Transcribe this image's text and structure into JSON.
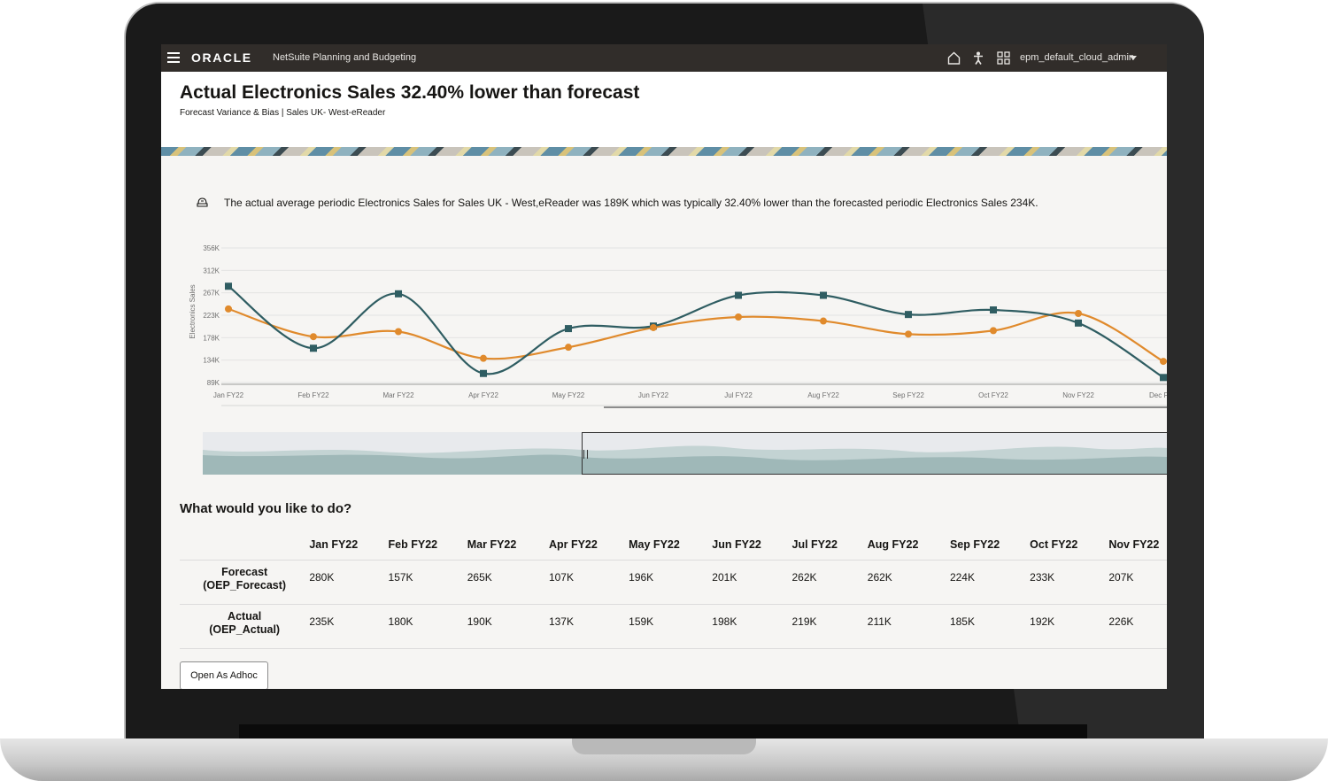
{
  "app": {
    "brand": "ORACLE",
    "product": "NetSuite Planning and Budgeting",
    "user": "epm_default_cloud_admin",
    "icons": [
      "menu-icon",
      "home-icon",
      "accessibility-icon",
      "apps-grid-icon",
      "dropdown-caret-icon"
    ]
  },
  "header": {
    "title": "Actual Electronics Sales 32.40% lower than forecast",
    "subtitle": "Forecast Variance & Bias | Sales UK- West-eReader"
  },
  "insight": {
    "icon": "insight-icon",
    "text": "The actual average periodic Electronics Sales for Sales UK - West,eReader was 189K which was typically 32.40% lower than the forecasted periodic Electronics Sales 234K."
  },
  "chart_data": {
    "type": "line",
    "ylabel": "Electronics Sales",
    "y_ticks": [
      "356K",
      "312K",
      "267K",
      "223K",
      "178K",
      "134K",
      "89K"
    ],
    "categories": [
      "Jan FY22",
      "Feb FY22",
      "Mar FY22",
      "Apr FY22",
      "May FY22",
      "Jun FY22",
      "Jul FY22",
      "Aug FY22",
      "Sep FY22",
      "Oct FY22",
      "Nov FY22",
      "Dec F"
    ],
    "ylim": [
      89,
      356
    ],
    "y_unit": "K",
    "grid": true,
    "smooth": true,
    "series": [
      {
        "values": [
          280,
          157,
          265,
          107,
          196,
          201,
          262,
          262,
          224,
          233,
          207,
          99
        ],
        "color": "#2f5d62",
        "marker": "square"
      },
      {
        "values": [
          235,
          180,
          190,
          137,
          159,
          198,
          219,
          211,
          185,
          192,
          226,
          131
        ],
        "color": "#e08a2c",
        "marker": "circle"
      }
    ]
  },
  "todo_heading": "What would you like to do?",
  "table": {
    "columns": [
      "Jan FY22",
      "Feb FY22",
      "Mar FY22",
      "Apr FY22",
      "May FY22",
      "Jun FY22",
      "Jul FY22",
      "Aug FY22",
      "Sep FY22",
      "Oct FY22",
      "Nov FY22"
    ],
    "rows": [
      {
        "label1": "Forecast",
        "label2": "(OEP_Forecast)",
        "cells": [
          "280K",
          "157K",
          "265K",
          "107K",
          "196K",
          "201K",
          "262K",
          "262K",
          "224K",
          "233K",
          "207K"
        ]
      },
      {
        "label1": "Actual",
        "label2": "(OEP_Actual)",
        "cells": [
          "235K",
          "180K",
          "190K",
          "137K",
          "159K",
          "198K",
          "219K",
          "211K",
          "185K",
          "192K",
          "226K"
        ]
      }
    ]
  },
  "buttons": {
    "open_adhoc": "Open As Adhoc"
  }
}
